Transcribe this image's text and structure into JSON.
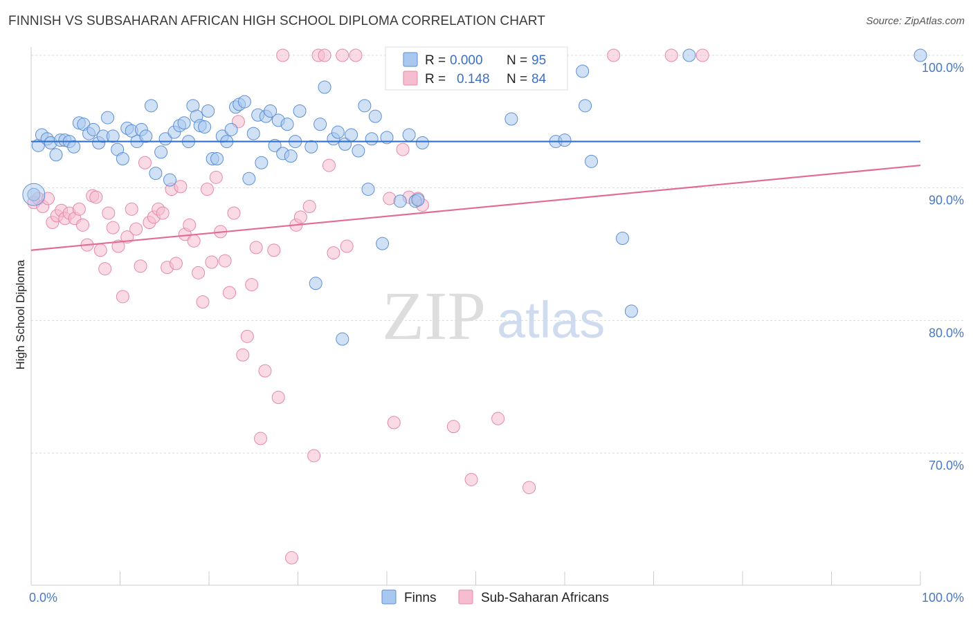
{
  "header": {
    "title": "FINNISH VS SUBSAHARAN AFRICAN HIGH SCHOOL DIPLOMA CORRELATION CHART",
    "source": "Source: ZipAtlas.com"
  },
  "watermark": {
    "zip": "ZIP",
    "atlas": "atlas"
  },
  "legend_box": {
    "rows": [
      {
        "r_label": "R =",
        "r_value": "0.000",
        "n_label": "N =",
        "n_value": "95"
      },
      {
        "r_label": "R =",
        "r_value": "0.148",
        "n_label": "N =",
        "n_value": "84"
      }
    ]
  },
  "bottom_legend": {
    "finns": "Finns",
    "africans": "Sub-Saharan Africans"
  },
  "colors": {
    "finns_fill": "#a9c8ef",
    "finns_stroke": "#5b8fd6",
    "finns_line": "#2f6fcf",
    "africans_fill": "#f6bcd0",
    "africans_stroke": "#e688a8",
    "africans_line": "#e26a95",
    "tick_text": "#4a78c2",
    "grid": "#d9d9d9"
  },
  "chart_data": {
    "type": "scatter",
    "title": "FINNISH VS SUBSAHARAN AFRICAN HIGH SCHOOL DIPLOMA CORRELATION CHART",
    "ylabel": "High School Diploma",
    "xlabel": "",
    "xlim": [
      0,
      100
    ],
    "ylim": [
      60,
      101.5
    ],
    "x_tick_labels": [
      "0.0%",
      "100.0%"
    ],
    "y_ticks": [
      {
        "value": 100,
        "label": "100.0%"
      },
      {
        "value": 90,
        "label": "90.0%"
      },
      {
        "value": 80,
        "label": "80.0%"
      },
      {
        "value": 70,
        "label": "70.0%"
      }
    ],
    "grid": true,
    "legend_position": "top-center",
    "series": [
      {
        "name": "Finns",
        "R": "0.000",
        "N": "95",
        "trend": {
          "x": [
            0,
            100
          ],
          "y": [
            93.5,
            93.5
          ]
        },
        "points": [
          [
            0.3,
            89.5
          ],
          [
            0.8,
            93.2
          ],
          [
            1.2,
            94
          ],
          [
            1.8,
            93.7
          ],
          [
            2.2,
            93.4
          ],
          [
            2.8,
            92.5
          ],
          [
            3.3,
            93.6
          ],
          [
            3.8,
            93.6
          ],
          [
            4.3,
            93.5
          ],
          [
            4.8,
            93.1
          ],
          [
            5.4,
            94.9
          ],
          [
            5.9,
            94.8
          ],
          [
            6.5,
            94.1
          ],
          [
            7.0,
            94.4
          ],
          [
            7.6,
            93.4
          ],
          [
            8.1,
            93.9
          ],
          [
            8.6,
            95.3
          ],
          [
            9.2,
            93.9
          ],
          [
            9.7,
            92.9
          ],
          [
            10.3,
            92.2
          ],
          [
            10.8,
            94.5
          ],
          [
            11.3,
            94.3
          ],
          [
            11.9,
            93.5
          ],
          [
            12.4,
            94.4
          ],
          [
            12.9,
            93.9
          ],
          [
            13.5,
            96.2
          ],
          [
            14.0,
            91.1
          ],
          [
            14.6,
            92.7
          ],
          [
            15.1,
            93.7
          ],
          [
            15.6,
            90.6
          ],
          [
            16.1,
            94.2
          ],
          [
            16.7,
            94.7
          ],
          [
            17.2,
            94.9
          ],
          [
            17.7,
            93.5
          ],
          [
            18.2,
            96.2
          ],
          [
            18.6,
            95.4
          ],
          [
            19.0,
            94.7
          ],
          [
            19.5,
            94.6
          ],
          [
            19.9,
            95.8
          ],
          [
            20.4,
            92.2
          ],
          [
            20.9,
            92.2
          ],
          [
            21.5,
            93.9
          ],
          [
            22.0,
            93.5
          ],
          [
            22.5,
            94.4
          ],
          [
            23.0,
            96.1
          ],
          [
            23.4,
            96.3
          ],
          [
            24.0,
            96.5
          ],
          [
            24.5,
            90.7
          ],
          [
            25.0,
            94.1
          ],
          [
            25.5,
            95.5
          ],
          [
            25.9,
            91.9
          ],
          [
            26.4,
            95.4
          ],
          [
            26.9,
            95.8
          ],
          [
            27.4,
            93.2
          ],
          [
            27.8,
            95.1
          ],
          [
            28.3,
            92.6
          ],
          [
            28.8,
            94.8
          ],
          [
            29.2,
            92.4
          ],
          [
            29.7,
            93.5
          ],
          [
            30.2,
            95.8
          ],
          [
            31.5,
            93.1
          ],
          [
            32.5,
            94.8
          ],
          [
            33.0,
            97.6
          ],
          [
            34.0,
            93.7
          ],
          [
            34.5,
            94.2
          ],
          [
            35.3,
            93.3
          ],
          [
            36.0,
            94.0
          ],
          [
            36.8,
            92.8
          ],
          [
            37.5,
            96.2
          ],
          [
            37.9,
            89.9
          ],
          [
            38.3,
            93.7
          ],
          [
            38.7,
            95.4
          ],
          [
            39.5,
            85.8
          ],
          [
            40.0,
            93.8
          ],
          [
            41.0,
            98.6
          ],
          [
            41.5,
            89.0
          ],
          [
            42.5,
            94.0
          ],
          [
            43.2,
            89.0
          ],
          [
            43.5,
            89.1
          ],
          [
            44.0,
            93.4
          ],
          [
            45.0,
            100.0
          ],
          [
            54.0,
            95.2
          ],
          [
            55.5,
            99.9
          ],
          [
            56.0,
            98.7
          ],
          [
            59.0,
            93.5
          ],
          [
            59.5,
            100.0
          ],
          [
            60.0,
            93.6
          ],
          [
            62.0,
            98.8
          ],
          [
            62.3,
            96.2
          ],
          [
            63.0,
            92.0
          ],
          [
            66.5,
            86.2
          ],
          [
            67.5,
            80.7
          ],
          [
            74.0,
            100.0
          ],
          [
            100.0,
            100.0
          ],
          [
            32.0,
            82.8
          ],
          [
            35.0,
            78.6
          ]
        ]
      },
      {
        "name": "Sub-Saharan Africans",
        "R": "0.148",
        "N": "84",
        "trend": {
          "x": [
            0,
            100
          ],
          "y": [
            85.3,
            91.7
          ]
        },
        "points": [
          [
            0.3,
            88.9
          ],
          [
            0.8,
            89.2
          ],
          [
            1.3,
            88.6
          ],
          [
            1.9,
            89.2
          ],
          [
            2.4,
            87.4
          ],
          [
            2.9,
            87.9
          ],
          [
            3.4,
            88.3
          ],
          [
            3.8,
            87.7
          ],
          [
            4.3,
            88.1
          ],
          [
            4.9,
            87.7
          ],
          [
            5.4,
            88.4
          ],
          [
            5.8,
            87.2
          ],
          [
            6.3,
            85.7
          ],
          [
            6.9,
            89.4
          ],
          [
            7.3,
            89.3
          ],
          [
            7.8,
            85.3
          ],
          [
            8.3,
            83.9
          ],
          [
            8.7,
            88.1
          ],
          [
            9.2,
            87.0
          ],
          [
            9.8,
            85.6
          ],
          [
            10.3,
            81.8
          ],
          [
            10.8,
            86.3
          ],
          [
            11.3,
            88.4
          ],
          [
            11.8,
            86.9
          ],
          [
            12.3,
            84.1
          ],
          [
            12.8,
            91.9
          ],
          [
            13.3,
            87.4
          ],
          [
            13.8,
            87.8
          ],
          [
            14.3,
            88.4
          ],
          [
            14.8,
            88.1
          ],
          [
            15.3,
            84.0
          ],
          [
            15.8,
            89.9
          ],
          [
            16.3,
            84.3
          ],
          [
            16.8,
            90.1
          ],
          [
            17.3,
            86.5
          ],
          [
            17.8,
            87.2
          ],
          [
            18.3,
            86.0
          ],
          [
            18.8,
            83.6
          ],
          [
            19.3,
            81.4
          ],
          [
            19.8,
            89.9
          ],
          [
            20.3,
            84.4
          ],
          [
            20.8,
            90.8
          ],
          [
            21.3,
            86.7
          ],
          [
            21.8,
            84.5
          ],
          [
            22.3,
            82.1
          ],
          [
            22.8,
            88.1
          ],
          [
            23.3,
            95.0
          ],
          [
            23.8,
            77.4
          ],
          [
            24.3,
            78.8
          ],
          [
            24.8,
            82.7
          ],
          [
            25.3,
            85.5
          ],
          [
            25.8,
            71.1
          ],
          [
            26.3,
            76.2
          ],
          [
            27.3,
            85.3
          ],
          [
            27.8,
            74.2
          ],
          [
            28.3,
            100.0
          ],
          [
            29.3,
            62.1
          ],
          [
            29.8,
            87.2
          ],
          [
            30.3,
            87.8
          ],
          [
            31.3,
            88.6
          ],
          [
            31.8,
            69.8
          ],
          [
            32.3,
            100.0
          ],
          [
            33.0,
            100.0
          ],
          [
            33.5,
            91.7
          ],
          [
            34.0,
            85.1
          ],
          [
            35.0,
            100.0
          ],
          [
            35.5,
            85.6
          ],
          [
            36.5,
            100.0
          ],
          [
            40.3,
            89.2
          ],
          [
            40.8,
            72.3
          ],
          [
            41.8,
            92.9
          ],
          [
            42.5,
            89.3
          ],
          [
            43.5,
            89.2
          ],
          [
            44.0,
            88.7
          ],
          [
            46.5,
            100.0
          ],
          [
            47.5,
            72.0
          ],
          [
            49.5,
            68.0
          ],
          [
            50.5,
            100.0
          ],
          [
            51.0,
            99.3
          ],
          [
            52.5,
            72.6
          ],
          [
            56.0,
            67.4
          ],
          [
            65.5,
            100.0
          ],
          [
            72.0,
            100.0
          ],
          [
            75.5,
            100.0
          ]
        ]
      }
    ]
  }
}
